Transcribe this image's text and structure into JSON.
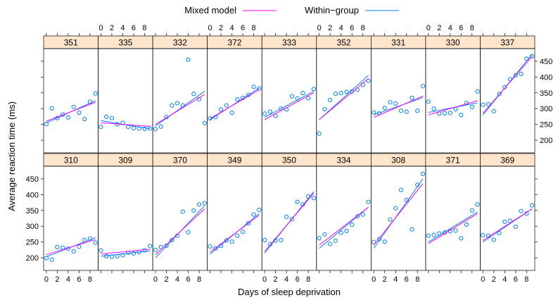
{
  "legend": {
    "items": [
      {
        "label": "Mixed model",
        "color": "#ff00ff"
      },
      {
        "label": "Within−group",
        "color": "#0080ff"
      }
    ]
  },
  "chart_data": {
    "type": "scatter",
    "xlabel": "Days of sleep deprivation",
    "ylabel": "Average reaction time (ms)",
    "xlim": [
      -0.5,
      9.5
    ],
    "ylim": [
      160,
      490
    ],
    "x_ticks": [
      0,
      2,
      4,
      6,
      8
    ],
    "y_ticks": [
      200,
      250,
      300,
      350,
      400,
      450
    ],
    "layout": {
      "columns": 9,
      "rows": 2
    },
    "strip_color": "#ffe5cc",
    "point_color": "#0080ff",
    "days": [
      0,
      1,
      2,
      3,
      4,
      5,
      6,
      7,
      8,
      9
    ],
    "panels": [
      {
        "subject": "310",
        "values": [
          199,
          194,
          234,
          232,
          229,
          220,
          235,
          256,
          261,
          248
        ],
        "within_group": [
          203,
          264
        ],
        "mixed_model": [
          210,
          258
        ]
      },
      {
        "subject": "309",
        "values": [
          223,
          205,
          203,
          205,
          208,
          216,
          214,
          218,
          224,
          237
        ],
        "within_group": [
          205,
          222
        ],
        "mixed_model": [
          212,
          227
        ]
      },
      {
        "subject": "370",
        "values": [
          225,
          234,
          238,
          256,
          270,
          346,
          281,
          350,
          369,
          373
        ],
        "within_group": [
          200,
          365
        ],
        "mixed_model": [
          210,
          355
        ]
      },
      {
        "subject": "349",
        "values": [
          236,
          230,
          238,
          255,
          251,
          270,
          282,
          309,
          337,
          352
        ],
        "within_group": [
          212,
          340
        ],
        "mixed_model": [
          218,
          335
        ]
      },
      {
        "subject": "350",
        "values": [
          256,
          243,
          255,
          256,
          330,
          322,
          377,
          369,
          394,
          389
        ],
        "within_group": [
          215,
          410
        ],
        "mixed_model": [
          220,
          405
        ]
      },
      {
        "subject": "334",
        "values": [
          262,
          274,
          244,
          254,
          279,
          285,
          305,
          331,
          337,
          377
        ],
        "within_group": [
          230,
          360
        ],
        "mixed_model": [
          240,
          360
        ]
      },
      {
        "subject": "308",
        "values": [
          250,
          259,
          251,
          321,
          357,
          415,
          383,
          290,
          431,
          466
        ],
        "within_group": [
          230,
          450
        ],
        "mixed_model": [
          240,
          435
        ]
      },
      {
        "subject": "371",
        "values": [
          270,
          272,
          277,
          280,
          284,
          286,
          262,
          305,
          350,
          369
        ],
        "within_group": [
          250,
          345
        ],
        "mixed_model": [
          245,
          340
        ]
      },
      {
        "subject": "369",
        "values": [
          272,
          270,
          257,
          278,
          314,
          317,
          298,
          348,
          340,
          366
        ],
        "within_group": [
          250,
          355
        ],
        "mixed_model": [
          255,
          355
        ]
      },
      {
        "subject": "351",
        "values": [
          251,
          301,
          270,
          281,
          272,
          305,
          287,
          267,
          322,
          348
        ],
        "within_group": [
          255,
          325
        ],
        "mixed_model": [
          260,
          320
        ]
      },
      {
        "subject": "335",
        "values": [
          242,
          274,
          270,
          250,
          255,
          242,
          238,
          237,
          236,
          237
        ],
        "within_group": [
          262,
          236
        ],
        "mixed_model": [
          255,
          244
        ]
      },
      {
        "subject": "332",
        "values": [
          235,
          243,
          273,
          310,
          317,
          310,
          455,
          347,
          330,
          254
        ],
        "within_group": [
          245,
          355
        ],
        "mixed_model": [
          250,
          345
        ]
      },
      {
        "subject": "372",
        "values": [
          269,
          273,
          297,
          310,
          287,
          329,
          334,
          343,
          369,
          364
        ],
        "within_group": [
          265,
          365
        ],
        "mixed_model": [
          268,
          360
        ]
      },
      {
        "subject": "333",
        "values": [
          284,
          290,
          277,
          300,
          297,
          339,
          332,
          349,
          333,
          362
        ],
        "within_group": [
          272,
          355
        ],
        "mixed_model": [
          265,
          350
        ]
      },
      {
        "subject": "352",
        "values": [
          221,
          298,
          327,
          347,
          349,
          353,
          354,
          360,
          375,
          388
        ],
        "within_group": [
          265,
          405
        ],
        "mixed_model": [
          265,
          395
        ]
      },
      {
        "subject": "331",
        "values": [
          288,
          285,
          302,
          320,
          316,
          293,
          290,
          334,
          293,
          371
        ],
        "within_group": [
          280,
          335
        ],
        "mixed_model": [
          272,
          340
        ]
      },
      {
        "subject": "330",
        "values": [
          322,
          300,
          284,
          285,
          286,
          298,
          280,
          318,
          305,
          354
        ],
        "within_group": [
          288,
          318
        ],
        "mixed_model": [
          280,
          325
        ]
      },
      {
        "subject": "337",
        "values": [
          312,
          314,
          292,
          346,
          368,
          393,
          406,
          410,
          458,
          466
        ],
        "within_group": [
          280,
          472
        ],
        "mixed_model": [
          285,
          465
        ]
      }
    ]
  }
}
